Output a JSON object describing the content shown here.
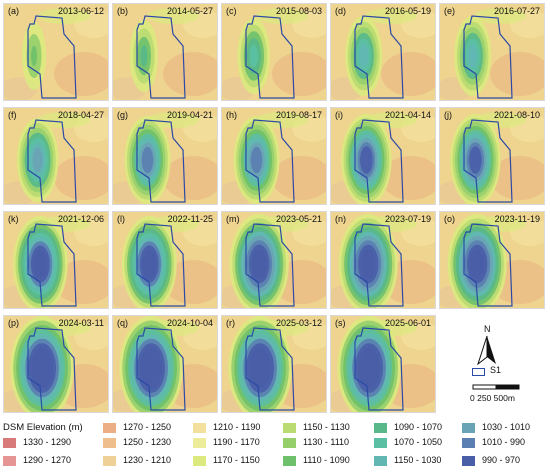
{
  "panels": [
    {
      "label": "(a)",
      "date": "2013-06-12",
      "stage": 0
    },
    {
      "label": "(b)",
      "date": "2014-05-27",
      "stage": 1
    },
    {
      "label": "(c)",
      "date": "2015-08-03",
      "stage": 2
    },
    {
      "label": "(d)",
      "date": "2016-05-19",
      "stage": 3
    },
    {
      "label": "(e)",
      "date": "2016-07-27",
      "stage": 3
    },
    {
      "label": "(f)",
      "date": "2018-04-27",
      "stage": 4
    },
    {
      "label": "(g)",
      "date": "2019-04-21",
      "stage": 5
    },
    {
      "label": "(h)",
      "date": "2019-08-17",
      "stage": 5
    },
    {
      "label": "(i)",
      "date": "2021-04-14",
      "stage": 6
    },
    {
      "label": "(j)",
      "date": "2021-08-10",
      "stage": 6
    },
    {
      "label": "(k)",
      "date": "2021-12-06",
      "stage": 7
    },
    {
      "label": "(l)",
      "date": "2022-11-25",
      "stage": 7
    },
    {
      "label": "(m)",
      "date": "2023-05-21",
      "stage": 8
    },
    {
      "label": "(n)",
      "date": "2023-07-19",
      "stage": 8
    },
    {
      "label": "(o)",
      "date": "2023-11-19",
      "stage": 8
    },
    {
      "label": "(p)",
      "date": "2024-03-11",
      "stage": 9
    },
    {
      "label": "(q)",
      "date": "2024-10-04",
      "stage": 9
    },
    {
      "label": "(r)",
      "date": "2025-03-12",
      "stage": 9
    },
    {
      "label": "(s)",
      "date": "2025-06-01",
      "stage": 9
    }
  ],
  "legend": {
    "title": "DSM Elevation (m)",
    "classes": [
      {
        "label": "1330 - 1290",
        "color": "#d97a7a"
      },
      {
        "label": "1290 - 1270",
        "color": "#e69595"
      },
      {
        "label": "1270 - 1250",
        "color": "#ecae85"
      },
      {
        "label": "1250 - 1230",
        "color": "#eebf8c"
      },
      {
        "label": "1230 - 1210",
        "color": "#efd096"
      },
      {
        "label": "1210 - 1190",
        "color": "#f2e09c"
      },
      {
        "label": "1190 - 1170",
        "color": "#ecec9a"
      },
      {
        "label": "1170 - 1150",
        "color": "#dbe97f"
      },
      {
        "label": "1150 - 1130",
        "color": "#b9db72"
      },
      {
        "label": "1130 - 1110",
        "color": "#95cf6c"
      },
      {
        "label": "1110 - 1090",
        "color": "#6fc06b"
      },
      {
        "label": "1090 - 1070",
        "color": "#58b88a"
      },
      {
        "label": "1070 - 1050",
        "color": "#5bbfa3"
      },
      {
        "label": "1150 - 1030",
        "color": "#62b7b3"
      },
      {
        "label": "1030 - 1010",
        "color": "#6aa3b5"
      },
      {
        "label": "1010 - 990",
        "color": "#5b7fb2"
      },
      {
        "label": "990 - 970",
        "color": "#4a5ea8"
      }
    ]
  },
  "map_key": {
    "north_label": "N",
    "site_label": "S1",
    "site_outline_color": "#2b4aa6",
    "scale_text": "0  250 500m"
  }
}
